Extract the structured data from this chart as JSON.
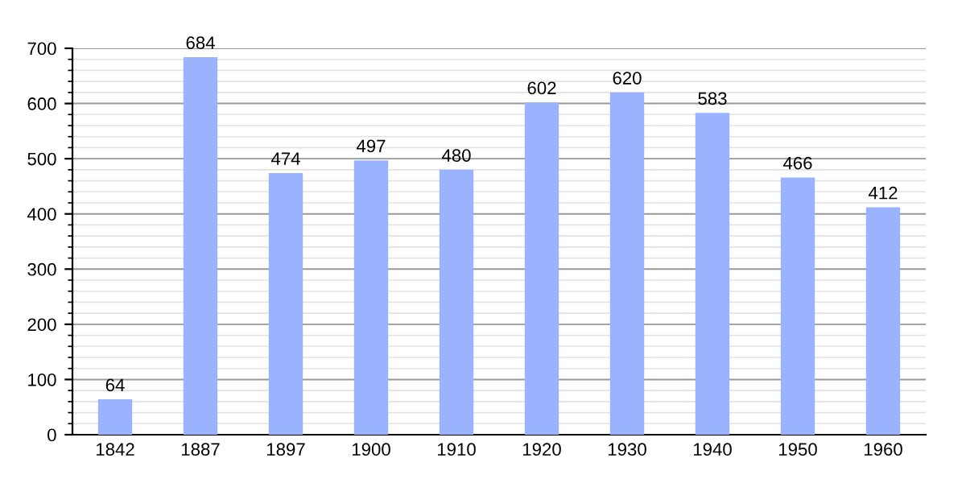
{
  "chart_data": {
    "type": "bar",
    "categories": [
      "1842",
      "1887",
      "1897",
      "1900",
      "1910",
      "1920",
      "1930",
      "1940",
      "1950",
      "1960"
    ],
    "values": [
      64,
      684,
      474,
      497,
      480,
      602,
      620,
      583,
      466,
      412
    ],
    "color": "#99b3ff",
    "ylim": [
      0,
      700
    ],
    "yticks": [
      0,
      100,
      200,
      300,
      400,
      500,
      600,
      700
    ],
    "grid": "y",
    "data_labels": true
  }
}
